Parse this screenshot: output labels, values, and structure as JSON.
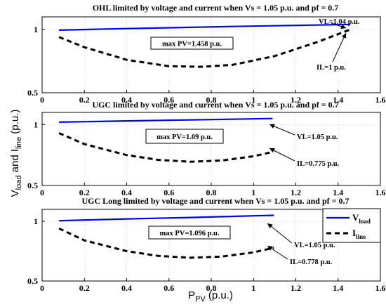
{
  "chart_data": [
    {
      "type": "line",
      "title": "OHL limited by voltage and current when Vs = 1.05 p.u. and pf = 0.7",
      "xlim": [
        0,
        1.6
      ],
      "ylim": [
        0.5,
        1.1
      ],
      "xticks": [
        "0",
        "0.2",
        "0.4",
        "0.6",
        "0.8",
        "1",
        "1.2",
        "1.4",
        "1.6"
      ],
      "yticks": [
        "0.5",
        "1"
      ],
      "grid": true,
      "series": [
        {
          "key": "vload",
          "color": "#0000ff",
          "style": "solid",
          "x": [
            0.08,
            0.3,
            0.6,
            0.9,
            1.2,
            1.458
          ],
          "y": [
            0.995,
            1.004,
            1.014,
            1.024,
            1.033,
            1.04
          ]
        },
        {
          "key": "iline",
          "color": "#000000",
          "style": "dashed",
          "x": [
            0.08,
            0.2,
            0.4,
            0.6,
            0.75,
            0.9,
            1.1,
            1.3,
            1.458
          ],
          "y": [
            0.94,
            0.86,
            0.76,
            0.71,
            0.705,
            0.72,
            0.79,
            0.9,
            1.0
          ]
        }
      ],
      "box_text": "max PV=1.458 p.u.",
      "annotations": [
        "VL=1.04 p.u.",
        "IL=1 p.u."
      ]
    },
    {
      "type": "line",
      "title": "UGC limited by voltage and current when Vs = 1.05 p.u. and pf = 0.7",
      "xlim": [
        0,
        1.6
      ],
      "ylim": [
        0.5,
        1.1
      ],
      "xticks": [
        "0",
        "0.2",
        "0.4",
        "0.6",
        "0.8",
        "1",
        "1.2",
        "1.4",
        "1.6"
      ],
      "yticks": [
        "0.5",
        "1"
      ],
      "grid": true,
      "series": [
        {
          "key": "vload",
          "color": "#0000ff",
          "style": "solid",
          "x": [
            0.08,
            0.4,
            0.7,
            0.9,
            1.09
          ],
          "y": [
            1.02,
            1.03,
            1.038,
            1.044,
            1.05
          ]
        },
        {
          "key": "iline",
          "color": "#000000",
          "style": "dashed",
          "x": [
            0.08,
            0.2,
            0.4,
            0.55,
            0.7,
            0.85,
            1.0,
            1.09
          ],
          "y": [
            0.93,
            0.84,
            0.75,
            0.71,
            0.695,
            0.705,
            0.74,
            0.775
          ]
        }
      ],
      "box_text": "max PV=1.09 p.u.",
      "annotations": [
        "VL=1.05 p.u.",
        "IL=0.775 p.u."
      ]
    },
    {
      "type": "line",
      "title": "UGC Long limited by voltage and current when Vs = 1.05 p.u. and pf = 0.7",
      "xlim": [
        0,
        1.6
      ],
      "ylim": [
        0.5,
        1.1
      ],
      "xticks": [
        "0",
        "0.2",
        "0.4",
        "0.6",
        "0.8",
        "1",
        "1.2",
        "1.4",
        "1.6"
      ],
      "yticks": [
        "0.5",
        "1"
      ],
      "grid": true,
      "series": [
        {
          "key": "vload",
          "color": "#0000ff",
          "style": "solid",
          "x": [
            0.08,
            0.4,
            0.7,
            0.9,
            1.096
          ],
          "y": [
            1.005,
            1.02,
            1.032,
            1.041,
            1.05
          ]
        },
        {
          "key": "iline",
          "color": "#000000",
          "style": "dashed",
          "x": [
            0.08,
            0.2,
            0.4,
            0.55,
            0.7,
            0.85,
            1.0,
            1.096
          ],
          "y": [
            0.94,
            0.84,
            0.75,
            0.71,
            0.695,
            0.705,
            0.74,
            0.778
          ]
        }
      ],
      "box_text": "max PV=1.096 p.u.",
      "annotations": [
        "VL=1.05 p.u.",
        "IL=0.778 p.u."
      ],
      "legend": {
        "placement": "top-right",
        "entries": [
          {
            "base": "V",
            "sub": "load",
            "color": "#0000ff",
            "style": "solid"
          },
          {
            "base": "I",
            "sub": "line",
            "color": "#000000",
            "style": "dashed"
          }
        ]
      }
    }
  ],
  "shared": {
    "ylabel": {
      "v": "V",
      "vsub": "load",
      "and": " and I",
      "isub": "line",
      "tail": " (p.u.)"
    },
    "xlabel": {
      "p": "P",
      "psub": "PV",
      "tail": " (p.u.)"
    }
  }
}
